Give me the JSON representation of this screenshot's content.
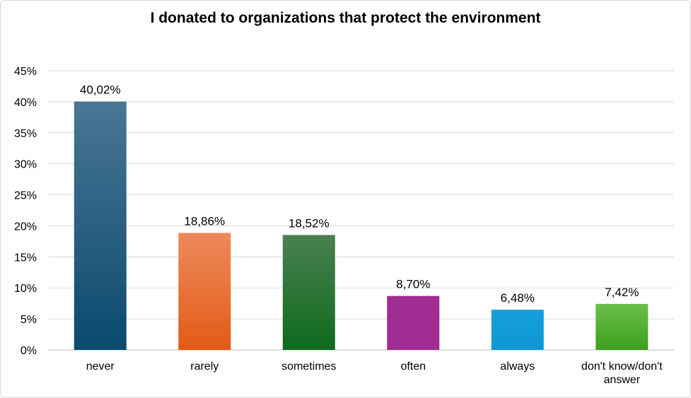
{
  "chart_data": {
    "type": "bar",
    "title": "I donated to organizations that protect the environment",
    "categories": [
      "never",
      "rarely",
      "sometimes",
      "often",
      "always",
      "don't know/don't answer"
    ],
    "category_lines": [
      [
        "never"
      ],
      [
        "rarely"
      ],
      [
        "sometimes"
      ],
      [
        "often"
      ],
      [
        "always"
      ],
      [
        "don't know/don't",
        "answer"
      ]
    ],
    "values": [
      40.02,
      18.86,
      18.52,
      8.7,
      6.48,
      7.42
    ],
    "data_labels": [
      "40,02%",
      "18,86%",
      "18,52%",
      "8,70%",
      "6,48%",
      "7,42%"
    ],
    "colors": [
      [
        "#4a7694",
        "#0a4a6e"
      ],
      [
        "#ee8a5c",
        "#e25a16"
      ],
      [
        "#4a8050",
        "#0e6a1c"
      ],
      [
        "#a02e92",
        "#a02e92"
      ],
      [
        "#15a0db",
        "#0f98d2"
      ],
      [
        "#6abf4a",
        "#3f9f20"
      ]
    ],
    "ylim": [
      0,
      45
    ],
    "yticks": [
      0,
      5,
      10,
      15,
      20,
      25,
      30,
      35,
      40,
      45
    ],
    "ytick_labels": [
      "0%",
      "5%",
      "10%",
      "15%",
      "20%",
      "25%",
      "30%",
      "35%",
      "40%",
      "45%"
    ],
    "xlabel": "",
    "ylabel": "",
    "grid": true,
    "legend": false
  }
}
